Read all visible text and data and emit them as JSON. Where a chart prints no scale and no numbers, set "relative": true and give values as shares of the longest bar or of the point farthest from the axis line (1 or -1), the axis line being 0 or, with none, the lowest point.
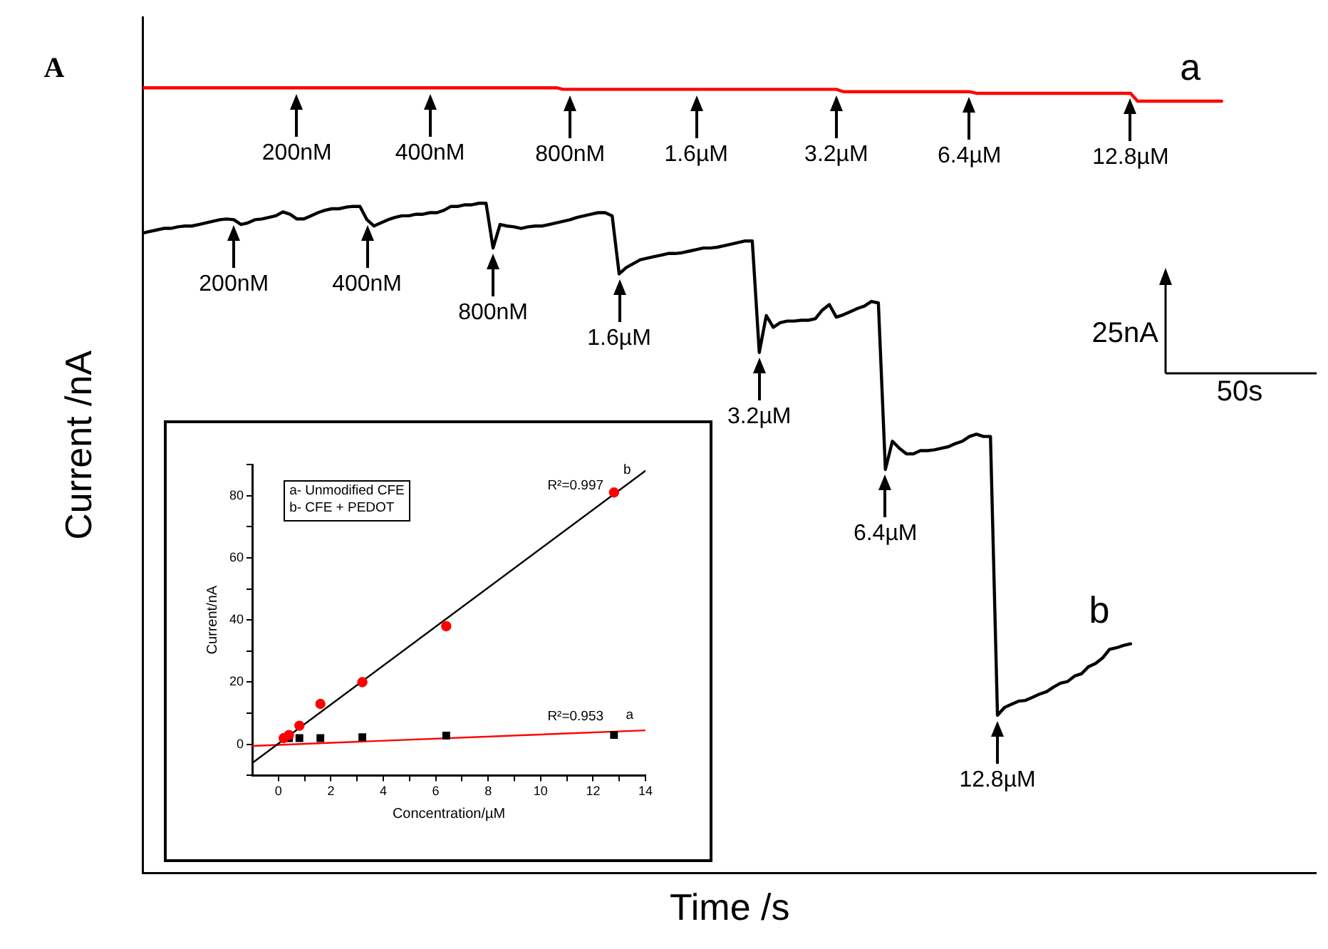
{
  "chart_data": [
    {
      "type": "line",
      "relative": true,
      "tick_labels": false,
      "xlabel": "Time /s",
      "ylabel": "Current /nA",
      "categories": [
        null,
        null,
        null,
        null,
        null,
        null,
        null,
        null,
        null,
        null,
        null,
        null,
        null,
        null,
        null,
        null,
        null,
        null,
        null,
        null,
        null,
        null,
        null,
        null,
        null,
        null,
        null,
        null,
        null,
        null,
        null,
        null,
        null,
        null,
        null,
        null,
        null,
        null,
        null,
        null,
        null,
        null,
        null,
        null,
        null,
        null,
        null,
        null,
        null,
        null,
        null,
        null,
        null,
        null,
        null,
        null,
        null,
        null,
        null,
        null,
        null,
        null,
        null,
        null,
        null,
        null,
        null,
        null,
        null,
        null,
        null,
        null,
        null,
        null,
        null,
        null,
        null,
        null,
        null,
        null,
        null,
        null,
        null,
        null,
        null,
        null,
        null,
        null,
        null,
        null,
        null,
        null,
        null,
        null,
        null,
        null,
        null,
        null,
        null,
        null,
        null,
        null,
        null,
        null,
        null,
        null,
        null,
        null,
        null,
        null,
        null,
        null,
        null,
        null,
        null,
        null,
        null,
        null,
        null,
        null,
        null,
        null,
        null,
        null,
        null,
        null,
        null,
        null,
        null,
        null,
        null,
        null,
        null,
        null,
        null,
        null,
        null,
        null,
        null,
        null,
        null,
        null,
        null,
        null,
        null,
        null,
        null,
        null,
        null,
        null,
        null,
        null,
        null,
        null,
        null
      ],
      "series": [
        {
          "name": "a",
          "color": "#ff0000",
          "values": [
            1,
            1,
            1,
            1,
            1,
            1,
            1,
            1,
            1,
            1,
            1,
            1,
            1,
            1,
            1,
            1,
            1,
            1,
            1,
            1,
            1,
            1,
            1,
            1,
            1,
            1,
            1,
            1,
            1,
            1,
            1,
            1,
            1,
            1,
            1,
            1,
            1,
            1,
            1,
            1,
            1,
            1,
            1,
            1,
            1,
            1,
            1,
            1,
            1,
            1,
            1,
            1,
            1,
            1,
            1,
            1,
            1,
            1,
            1,
            1,
            0.998,
            0.998,
            0.998,
            0.998,
            0.998,
            0.998,
            0.998,
            0.998,
            0.998,
            0.998,
            0.998,
            0.998,
            0.998,
            0.998,
            0.998,
            0.998,
            0.998,
            0.998,
            0.998,
            0.998,
            0.998,
            0.998,
            0.998,
            0.998,
            0.998,
            0.998,
            0.998,
            0.998,
            0.998,
            0.998,
            0.998,
            0.998,
            0.998,
            0.998,
            0.998,
            0.998,
            0.998,
            0.998,
            0.998,
            0.998,
            0.995,
            0.995,
            0.995,
            0.995,
            0.995,
            0.995,
            0.995,
            0.995,
            0.995,
            0.995,
            0.995,
            0.995,
            0.995,
            0.995,
            0.995,
            0.995,
            0.995,
            0.995,
            0.995,
            0.993,
            0.993,
            0.993,
            0.993,
            0.993,
            0.993,
            0.993,
            0.993,
            0.993,
            0.993,
            0.993,
            0.993,
            0.993,
            0.993,
            0.993,
            0.993,
            0.993,
            0.993,
            0.993,
            0.993,
            0.993,
            0.993,
            0.993,
            0.983,
            0.983,
            0.983,
            0.983,
            0.983,
            0.983,
            0.983,
            0.983,
            0.983,
            0.983,
            0.983,
            0.983,
            0.983
          ]
        },
        {
          "name": "b",
          "color": "#000000",
          "values": [
            0.815,
            0.817,
            0.819,
            0.821,
            0.821,
            0.823,
            0.824,
            0.824,
            0.826,
            0.828,
            0.83,
            0.832,
            0.833,
            0.832,
            0.826,
            0.828,
            0.832,
            0.833,
            0.835,
            0.837,
            0.842,
            0.839,
            0.833,
            0.833,
            0.837,
            0.841,
            0.844,
            0.846,
            0.846,
            0.848,
            0.849,
            0.849,
            0.832,
            0.824,
            0.828,
            0.832,
            0.835,
            0.837,
            0.837,
            0.839,
            0.839,
            0.841,
            0.841,
            0.844,
            0.849,
            0.849,
            0.851,
            0.851,
            0.853,
            0.853,
            0.796,
            0.826,
            0.824,
            0.823,
            0.821,
            0.823,
            0.824,
            0.824,
            0.826,
            0.828,
            0.83,
            0.832,
            0.835,
            0.837,
            0.839,
            0.841,
            0.841,
            0.837,
            0.763,
            0.771,
            0.776,
            0.781,
            0.783,
            0.785,
            0.787,
            0.789,
            0.789,
            0.79,
            0.792,
            0.794,
            0.796,
            0.796,
            0.797,
            0.799,
            0.801,
            0.803,
            0.805,
            0.805,
            0.663,
            0.71,
            0.695,
            0.701,
            0.703,
            0.703,
            0.704,
            0.704,
            0.706,
            0.717,
            0.724,
            0.708,
            0.711,
            0.715,
            0.719,
            0.722,
            0.728,
            0.726,
            0.514,
            0.55,
            0.541,
            0.534,
            0.534,
            0.538,
            0.538,
            0.539,
            0.541,
            0.543,
            0.547,
            0.55,
            0.556,
            0.559,
            0.556,
            0.556,
            0.201,
            0.211,
            0.215,
            0.219,
            0.22,
            0.224,
            0.228,
            0.231,
            0.237,
            0.242,
            0.244,
            0.251,
            0.254,
            0.263,
            0.267,
            0.274,
            0.285,
            0.287,
            0.29,
            0.292,
            null,
            null,
            null,
            null,
            null,
            null,
            null,
            null,
            null,
            null,
            null,
            null,
            null
          ]
        }
      ],
      "annotations": [
        "A",
        "200nM",
        "400nM",
        "800nM",
        "1.6µM",
        "3.2µM",
        "6.4µM",
        "12.8µM",
        "200nM",
        "400nM",
        "800nM",
        "1.6µM",
        "3.2µM",
        "6.4µM",
        "12.8µM",
        "25nA",
        "50s"
      ]
    },
    {
      "type": "scatter",
      "xlabel": "Concentration/µM",
      "ylabel": "Current/nA",
      "xlim": [
        -1,
        14
      ],
      "ylim": [
        -10,
        90
      ],
      "xticks": [
        0,
        {
          "value": 1,
          "label": null
        },
        2,
        {
          "value": 3,
          "label": null
        },
        4,
        {
          "value": 5,
          "label": null
        },
        6,
        {
          "value": 7,
          "label": null
        },
        8,
        {
          "value": 9,
          "label": null
        },
        10,
        {
          "value": 11,
          "label": null
        },
        12,
        {
          "value": 13,
          "label": null
        },
        14
      ],
      "yticks": [
        {
          "value": -10,
          "label": null
        },
        0,
        {
          "value": 10,
          "label": null
        },
        20,
        {
          "value": 30,
          "label": null
        },
        40,
        {
          "value": 50,
          "label": null
        },
        60,
        {
          "value": 70,
          "label": null
        },
        80,
        {
          "value": 90,
          "label": null
        }
      ],
      "series": [
        {
          "type": "scatter",
          "marker": "circle",
          "color": "#ff0000",
          "x": [
            0.2,
            0.4,
            0.8,
            1.6,
            3.2,
            6.4,
            12.8
          ],
          "values": [
            2,
            3,
            6,
            13,
            20,
            38,
            81
          ]
        },
        {
          "type": "scatter",
          "marker": "square",
          "color": "#000000",
          "x": [
            0.4,
            0.8,
            1.6,
            3.2,
            6.4,
            12.8
          ],
          "values": [
            2,
            2,
            2,
            2.3,
            2.8,
            3
          ]
        },
        {
          "type": "line",
          "marker": "none",
          "color": "#000000",
          "x": [
            -1,
            14
          ],
          "values": [
            -6,
            88
          ]
        },
        {
          "type": "line",
          "marker": "none",
          "color": "#ff0000",
          "x": [
            -1,
            14
          ],
          "values": [
            -0.5,
            4.5
          ]
        }
      ],
      "annotations": [
        "a- Unmodified CFE",
        "b- CFE + PEDOT",
        "R²=0.997",
        "b",
        "R²=0.953",
        "a"
      ]
    }
  ]
}
